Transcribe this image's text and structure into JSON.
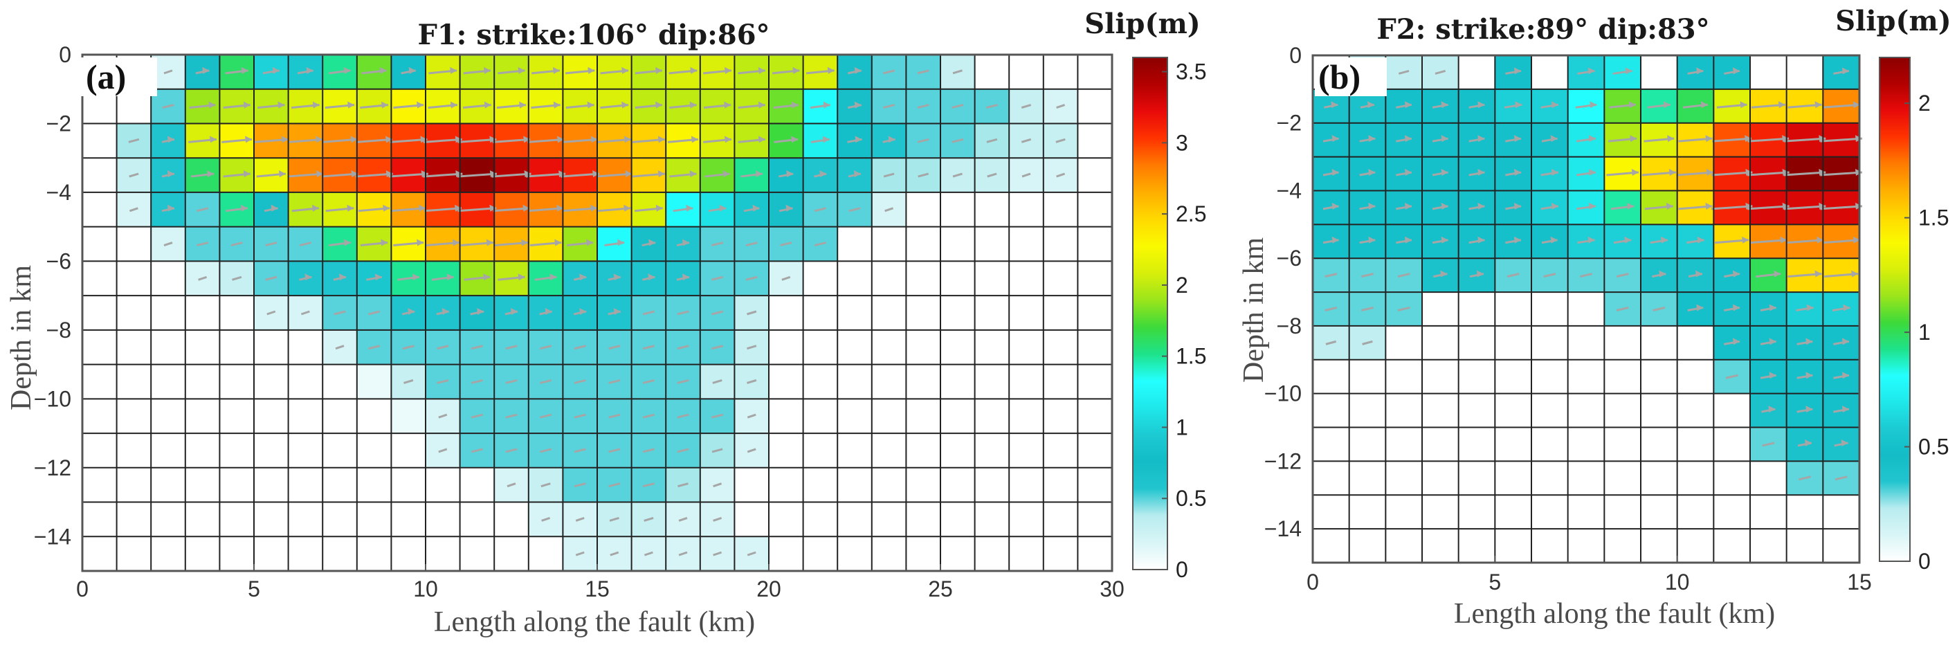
{
  "chart_data": [
    {
      "type": "heatmap",
      "panel_label": "(a)",
      "title": "F1: strike:106°  dip:86°",
      "xlabel": "Length along the fault (km)",
      "ylabel": "Depth in km",
      "xlim": [
        0,
        30
      ],
      "ylim": [
        -15,
        0
      ],
      "xticks": [
        "0",
        "5",
        "10",
        "15",
        "20",
        "25",
        "30"
      ],
      "yticks": [
        "0",
        "−2",
        "−4",
        "−6",
        "−8",
        "−10",
        "−12",
        "−14"
      ],
      "cell_size_km": 1,
      "colorbar": {
        "label": "Slip(m)",
        "range": [
          0,
          3.6
        ],
        "ticks": [
          "0",
          "0.5",
          "1",
          "1.5",
          "2",
          "2.5",
          "3",
          "3.5"
        ]
      },
      "slip_rows_m": [
        [
          0,
          0,
          0.2,
          0.7,
          1.6,
          1.0,
          0.9,
          1.5,
          1.8,
          0.8,
          2.1,
          2.0,
          2.0,
          2.1,
          2.2,
          2.1,
          2.0,
          2.1,
          2.1,
          2.0,
          2.0,
          2.1,
          0.7,
          0.5,
          0.5,
          0.3,
          0,
          0,
          0,
          0
        ],
        [
          0,
          0,
          0.5,
          1.9,
          2.0,
          2.0,
          2.1,
          2.2,
          2.1,
          2.3,
          2.2,
          2.1,
          2.2,
          2.2,
          2.1,
          2.1,
          2.0,
          2.0,
          2.0,
          2.0,
          1.8,
          1.3,
          0.7,
          0.5,
          0.5,
          0.5,
          0.5,
          0.3,
          0.2,
          0
        ],
        [
          0,
          0.4,
          0.6,
          2.1,
          2.3,
          2.7,
          2.7,
          2.8,
          2.9,
          3.0,
          3.1,
          3.1,
          3.0,
          2.9,
          2.8,
          2.6,
          2.5,
          2.3,
          2.1,
          2.0,
          1.7,
          1.2,
          0.8,
          0.6,
          0.5,
          0.5,
          0.4,
          0.3,
          0.3,
          0
        ],
        [
          0,
          0.3,
          0.6,
          1.6,
          2.0,
          2.2,
          2.8,
          2.9,
          3.0,
          3.2,
          3.4,
          3.6,
          3.4,
          3.2,
          3.1,
          2.8,
          2.5,
          2.0,
          1.8,
          1.5,
          0.8,
          0.6,
          0.6,
          0.4,
          0.4,
          0.3,
          0.3,
          0.2,
          0.2,
          0
        ],
        [
          0,
          0.2,
          0.6,
          0.5,
          1.5,
          0.7,
          2.0,
          2.1,
          2.4,
          2.7,
          3.0,
          3.1,
          2.9,
          2.8,
          2.7,
          2.5,
          2.1,
          1.3,
          1.1,
          0.9,
          0.7,
          0.5,
          0.5,
          0.2,
          0,
          0,
          0,
          0,
          0,
          0
        ],
        [
          0,
          0,
          0.2,
          0.5,
          0.5,
          0.5,
          0.5,
          1.5,
          2.0,
          2.3,
          2.6,
          2.5,
          2.6,
          2.4,
          1.9,
          1.3,
          0.7,
          0.6,
          0.5,
          0.5,
          0.5,
          0.5,
          0,
          0,
          0,
          0,
          0,
          0,
          0,
          0
        ],
        [
          0,
          0,
          0,
          0.2,
          0.3,
          0.5,
          0.6,
          0.6,
          0.9,
          1.5,
          1.5,
          1.9,
          2.0,
          1.5,
          0.6,
          0.6,
          0.6,
          0.6,
          0.5,
          0.5,
          0.2,
          0,
          0,
          0,
          0,
          0,
          0,
          0,
          0,
          0
        ],
        [
          0,
          0,
          0,
          0,
          0,
          0.2,
          0.2,
          0.5,
          0.5,
          0.6,
          0.6,
          0.7,
          0.6,
          0.6,
          0.6,
          0.6,
          0.5,
          0.5,
          0.5,
          0.3,
          0,
          0,
          0,
          0,
          0,
          0,
          0,
          0,
          0,
          0
        ],
        [
          0,
          0,
          0,
          0,
          0,
          0,
          0,
          0.2,
          0.5,
          0.5,
          0.5,
          0.5,
          0.5,
          0.5,
          0.5,
          0.5,
          0.5,
          0.5,
          0.5,
          0.3,
          0,
          0,
          0,
          0,
          0,
          0,
          0,
          0,
          0,
          0
        ],
        [
          0,
          0,
          0,
          0,
          0,
          0,
          0,
          0,
          0.1,
          0.3,
          0.5,
          0.5,
          0.5,
          0.5,
          0.5,
          0.5,
          0.5,
          0.5,
          0.3,
          0.3,
          0,
          0,
          0,
          0,
          0,
          0,
          0,
          0,
          0,
          0
        ],
        [
          0,
          0,
          0,
          0,
          0,
          0,
          0,
          0,
          0,
          0.1,
          0.2,
          0.5,
          0.5,
          0.5,
          0.5,
          0.5,
          0.5,
          0.5,
          0.5,
          0.2,
          0,
          0,
          0,
          0,
          0,
          0,
          0,
          0,
          0,
          0
        ],
        [
          0,
          0,
          0,
          0,
          0,
          0,
          0,
          0,
          0,
          0,
          0.2,
          0.5,
          0.5,
          0.5,
          0.5,
          0.5,
          0.5,
          0.5,
          0.4,
          0.2,
          0,
          0,
          0,
          0,
          0,
          0,
          0,
          0,
          0,
          0
        ],
        [
          0,
          0,
          0,
          0,
          0,
          0,
          0,
          0,
          0,
          0,
          0,
          0,
          0.2,
          0.3,
          0.5,
          0.5,
          0.5,
          0.4,
          0.2,
          0,
          0,
          0,
          0,
          0,
          0,
          0,
          0,
          0,
          0,
          0
        ],
        [
          0,
          0,
          0,
          0,
          0,
          0,
          0,
          0,
          0,
          0,
          0,
          0,
          0,
          0.2,
          0.2,
          0.3,
          0.3,
          0.2,
          0.2,
          0,
          0,
          0,
          0,
          0,
          0,
          0,
          0,
          0,
          0,
          0
        ],
        [
          0,
          0,
          0,
          0,
          0,
          0,
          0,
          0,
          0,
          0,
          0,
          0,
          0,
          0,
          0.2,
          0.2,
          0.2,
          0.2,
          0.2,
          0.2,
          0,
          0,
          0,
          0,
          0,
          0,
          0,
          0,
          0,
          0
        ]
      ]
    },
    {
      "type": "heatmap",
      "panel_label": "(b)",
      "title": "F2: strike:89°  dip:83°",
      "xlabel": "Length along the fault (km)",
      "ylabel": "Depth in km",
      "xlim": [
        0,
        15
      ],
      "ylim": [
        -15,
        0
      ],
      "xticks": [
        "0",
        "5",
        "10",
        "15"
      ],
      "yticks": [
        "0",
        "−2",
        "−4",
        "−6",
        "−8",
        "−10",
        "−12",
        "−14"
      ],
      "cell_size_km": 1,
      "colorbar": {
        "label": "Slip(m)",
        "range": [
          0,
          2.2
        ],
        "ticks": [
          "0",
          "0.5",
          "1",
          "1.5",
          "2"
        ]
      },
      "slip_rows_m": [
        [
          0,
          0.2,
          0.2,
          0.2,
          0,
          0.5,
          0,
          0.6,
          0.7,
          0,
          0.5,
          0.5,
          0,
          0,
          0.5
        ],
        [
          0.4,
          0.4,
          0.5,
          0.5,
          0.5,
          0.6,
          0.6,
          0.8,
          1.1,
          0.9,
          1.0,
          1.3,
          1.5,
          1.5,
          1.7
        ],
        [
          0.5,
          0.5,
          0.5,
          0.5,
          0.5,
          0.5,
          0.5,
          0.7,
          1.2,
          1.3,
          1.5,
          1.8,
          1.9,
          2.0,
          2.0
        ],
        [
          0.5,
          0.5,
          0.5,
          0.5,
          0.5,
          0.5,
          0.6,
          0.7,
          1.4,
          1.5,
          1.6,
          1.9,
          2.0,
          2.2,
          2.2
        ],
        [
          0.5,
          0.5,
          0.5,
          0.5,
          0.5,
          0.5,
          0.6,
          0.7,
          0.9,
          1.2,
          1.5,
          1.9,
          2.0,
          2.0,
          2.0
        ],
        [
          0.5,
          0.5,
          0.5,
          0.5,
          0.5,
          0.5,
          0.5,
          0.6,
          0.6,
          0.6,
          0.6,
          1.5,
          1.7,
          1.7,
          1.7
        ],
        [
          0.3,
          0.3,
          0.3,
          0.4,
          0.4,
          0.3,
          0.3,
          0.3,
          0.3,
          0.4,
          0.4,
          0.5,
          1.0,
          1.5,
          1.5
        ],
        [
          0.3,
          0.3,
          0.3,
          0,
          0,
          0,
          0,
          0,
          0.3,
          0.3,
          0.5,
          0.5,
          0.5,
          0.6,
          0.6
        ],
        [
          0.2,
          0.2,
          0,
          0,
          0,
          0,
          0,
          0,
          0,
          0,
          0,
          0.5,
          0.5,
          0.5,
          0.5
        ],
        [
          0,
          0,
          0,
          0,
          0,
          0,
          0,
          0,
          0,
          0,
          0,
          0.3,
          0.5,
          0.5,
          0.5
        ],
        [
          0,
          0,
          0,
          0,
          0,
          0,
          0,
          0,
          0,
          0,
          0,
          0,
          0.4,
          0.5,
          0.5
        ],
        [
          0,
          0,
          0,
          0,
          0,
          0,
          0,
          0,
          0,
          0,
          0,
          0,
          0.3,
          0.4,
          0.4
        ],
        [
          0,
          0,
          0,
          0,
          0,
          0,
          0,
          0,
          0,
          0,
          0,
          0,
          0,
          0.3,
          0.3
        ],
        [
          0,
          0,
          0,
          0,
          0,
          0,
          0,
          0,
          0,
          0,
          0,
          0,
          0,
          0,
          0
        ],
        [
          0,
          0,
          0,
          0,
          0,
          0,
          0,
          0,
          0,
          0,
          0,
          0,
          0,
          0,
          0
        ]
      ]
    }
  ],
  "colors": {
    "grid_line": "#222222",
    "vector": "#a6a6a6",
    "colormap_stops": [
      "#ffffff",
      "#d9f5f6",
      "#b8ecef",
      "#22c5cf",
      "#13bcc6",
      "#1ccad2",
      "#1fe8ea",
      "#24ffff",
      "#1ee28a",
      "#3dda3a",
      "#9be51b",
      "#d8ef0a",
      "#fafa00",
      "#ffd900",
      "#ffae00",
      "#ff7a00",
      "#ff3300",
      "#e80a0a",
      "#b30000",
      "#8c0000"
    ]
  }
}
